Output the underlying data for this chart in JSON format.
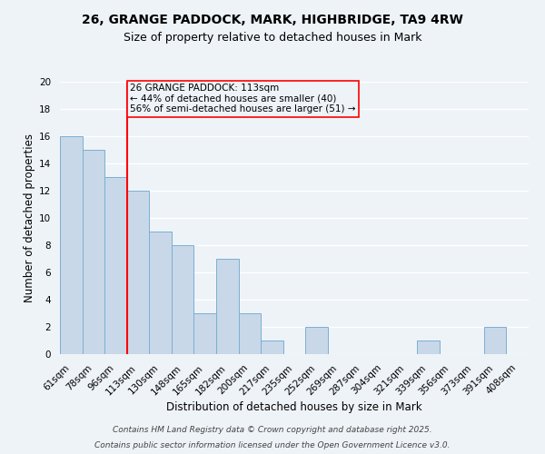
{
  "title_line1": "26, GRANGE PADDOCK, MARK, HIGHBRIDGE, TA9 4RW",
  "title_line2": "Size of property relative to detached houses in Mark",
  "xlabel": "Distribution of detached houses by size in Mark",
  "ylabel": "Number of detached properties",
  "bin_labels": [
    "61sqm",
    "78sqm",
    "96sqm",
    "113sqm",
    "130sqm",
    "148sqm",
    "165sqm",
    "182sqm",
    "200sqm",
    "217sqm",
    "235sqm",
    "252sqm",
    "269sqm",
    "287sqm",
    "304sqm",
    "321sqm",
    "339sqm",
    "356sqm",
    "373sqm",
    "391sqm",
    "408sqm"
  ],
  "bar_heights": [
    16,
    15,
    13,
    12,
    9,
    8,
    3,
    7,
    3,
    1,
    0,
    2,
    0,
    0,
    0,
    0,
    1,
    0,
    0,
    2,
    0
  ],
  "bar_color": "#c8d8e8",
  "bar_edge_color": "#7bafd4",
  "vline_x_index": 3,
  "vline_color": "red",
  "annotation_text": "26 GRANGE PADDOCK: 113sqm\n← 44% of detached houses are smaller (40)\n56% of semi-detached houses are larger (51) →",
  "annotation_box_edge": "red",
  "ylim": [
    0,
    20
  ],
  "yticks": [
    0,
    2,
    4,
    6,
    8,
    10,
    12,
    14,
    16,
    18,
    20
  ],
  "footer_line1": "Contains HM Land Registry data © Crown copyright and database right 2025.",
  "footer_line2": "Contains public sector information licensed under the Open Government Licence v3.0.",
  "background_color": "#eef3f8",
  "grid_color": "#ffffff",
  "title_fontsize": 10,
  "subtitle_fontsize": 9,
  "axis_label_fontsize": 8.5,
  "tick_fontsize": 7.5,
  "annotation_fontsize": 7.5,
  "footer_fontsize": 6.5
}
